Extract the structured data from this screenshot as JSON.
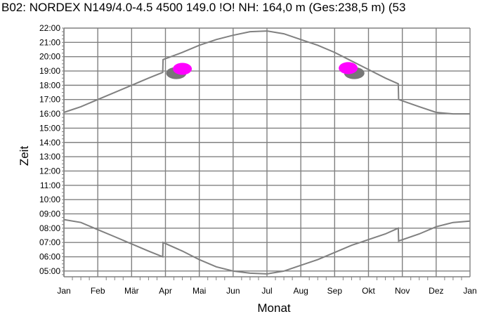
{
  "chart_data": {
    "type": "line",
    "title": "B02: NORDEX N149/4.0-4.5 4500 149.0 !O! NH: 164,0 m (Ges:238,5 m) (53",
    "xlabel": "Monat",
    "ylabel": "Zeit",
    "x_ticks": [
      "Jan",
      "Feb",
      "Mär",
      "Apr",
      "Mai",
      "Jun",
      "Jul",
      "Aug",
      "Sep",
      "Okt",
      "Nov",
      "Dez",
      "Jan"
    ],
    "y_ticks": [
      "05:00",
      "06:00",
      "07:00",
      "08:00",
      "09:00",
      "10:00",
      "11:00",
      "12:00",
      "13:00",
      "14:00",
      "15:00",
      "16:00",
      "17:00",
      "18:00",
      "19:00",
      "20:00",
      "21:00",
      "22:00"
    ],
    "xlim": [
      0,
      12
    ],
    "ylim": [
      4.6,
      22.0
    ],
    "grid": true,
    "colors": {
      "lines": "#808080",
      "grid": "#808080",
      "shadow_magenta": "#ff00ff",
      "shadow_gray": "#777777"
    },
    "series": [
      {
        "x": [
          0,
          0.5,
          1,
          1.5,
          2,
          2.5,
          2.92,
          2.93,
          3.5,
          4,
          4.5,
          5,
          5.5,
          6,
          6.5,
          7,
          7.5,
          8,
          8.5,
          9,
          9.5,
          9.88,
          9.89,
          10.5,
          11,
          11.5,
          12
        ],
        "y": [
          16.1,
          16.5,
          17.0,
          17.5,
          18.0,
          18.5,
          18.9,
          19.8,
          20.3,
          20.8,
          21.2,
          21.5,
          21.75,
          21.8,
          21.6,
          21.2,
          20.8,
          20.3,
          19.7,
          19.1,
          18.5,
          18.1,
          17.0,
          16.5,
          16.1,
          16.0,
          16.0
        ]
      },
      {
        "x": [
          0,
          0.5,
          1,
          1.5,
          2,
          2.5,
          2.92,
          2.93,
          3.5,
          4,
          4.5,
          5,
          5.5,
          6,
          6.5,
          7,
          7.5,
          8,
          8.5,
          9,
          9.5,
          9.88,
          9.89,
          10.5,
          11,
          11.5,
          12
        ],
        "y": [
          8.6,
          8.4,
          7.9,
          7.4,
          6.9,
          6.4,
          6.0,
          7.0,
          6.4,
          5.8,
          5.3,
          5.0,
          4.85,
          4.8,
          5.0,
          5.4,
          5.8,
          6.3,
          6.8,
          7.2,
          7.6,
          8.0,
          7.1,
          7.6,
          8.1,
          8.4,
          8.5
        ]
      }
    ],
    "shadow_regions": [
      {
        "color": "#777777",
        "cx": 3.32,
        "cy": 18.85,
        "rx": 0.3,
        "ry": 0.42
      },
      {
        "color": "#777777",
        "cx": 8.58,
        "cy": 18.85,
        "rx": 0.3,
        "ry": 0.42
      },
      {
        "color": "#ff00ff",
        "cx": 3.5,
        "cy": 19.15,
        "rx": 0.28,
        "ry": 0.42
      },
      {
        "color": "#ff00ff",
        "cx": 8.4,
        "cy": 19.2,
        "rx": 0.28,
        "ry": 0.42
      }
    ]
  }
}
